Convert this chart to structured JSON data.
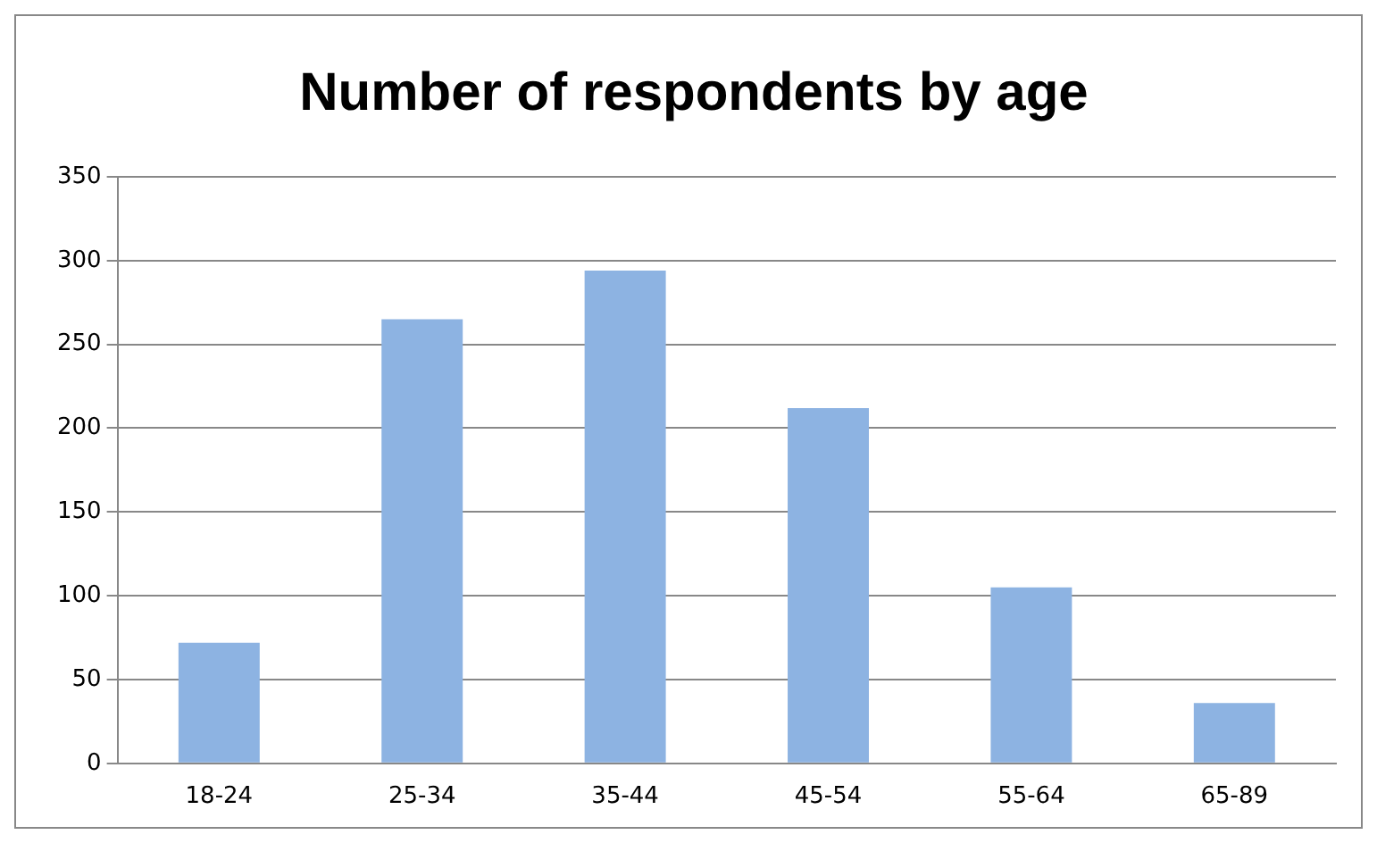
{
  "chart_data": {
    "type": "bar",
    "title": "Number of respondents by age",
    "categories": [
      "18-24",
      "25-34",
      "35-44",
      "45-54",
      "55-64",
      "65-89"
    ],
    "values": [
      72,
      265,
      294,
      212,
      105,
      36
    ],
    "color": "#8db3e2",
    "ylim": [
      0,
      350
    ],
    "yticks": [
      0,
      50,
      100,
      150,
      200,
      250,
      300,
      350
    ],
    "grid": "y",
    "legend": false
  }
}
